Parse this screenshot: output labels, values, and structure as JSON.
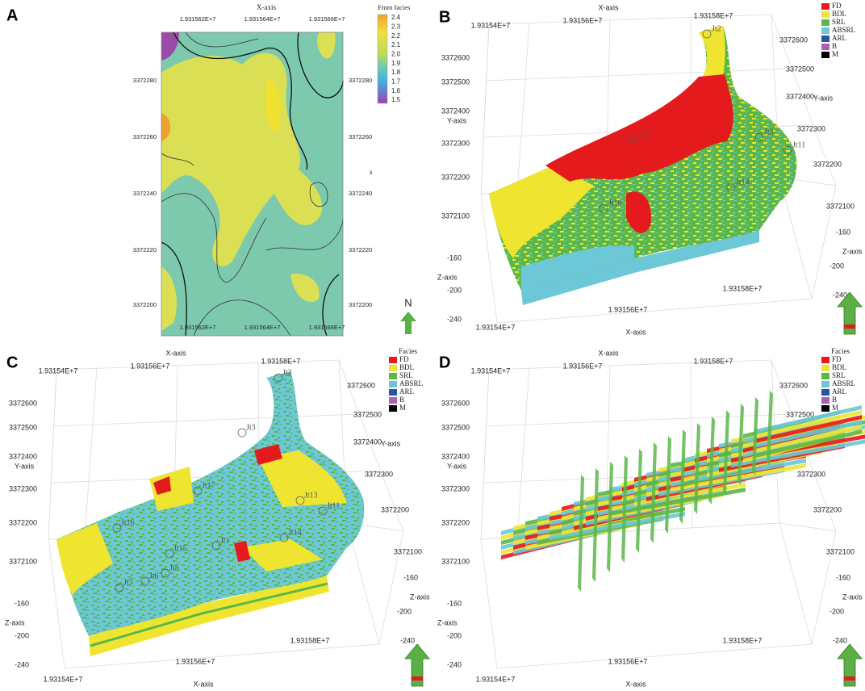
{
  "panels": [
    {
      "label": "A",
      "x_axis": "X-axis",
      "x_ticks_top": [
        "1.931562E+7",
        "1.931564E+7",
        "1.931566E+7"
      ],
      "x_ticks_bottom": [
        "1.931562E+7",
        "1.931564E+7",
        "1.931566E+7"
      ],
      "y_ticks_left": [
        "3372280",
        "3372260",
        "3372240",
        "3372220",
        "3372200"
      ],
      "y_ticks_right": [
        "3372280",
        "3372260",
        "3372240",
        "3372220",
        "3372200"
      ],
      "colorbar_title": "From facies",
      "colorbar_labels": [
        "2.4",
        "2.3",
        "2.2",
        "2.1",
        "2.0",
        "1.9",
        "1.8",
        "1.7",
        "1.6",
        "1.5"
      ],
      "side_note": "s",
      "north": "N"
    },
    {
      "label": "B",
      "legend": [
        "FD",
        "BDL",
        "SRL",
        "ABSRL",
        "ARL",
        "B",
        "M"
      ],
      "x_axis_top": "X-axis",
      "x_ticks_top": [
        "1.93154E+7",
        "1.93156E+7",
        "1.93158E+7"
      ],
      "y_axis_left": "Y-axis",
      "y_ticks_left": [
        "3372600",
        "3372500",
        "3372400",
        "3372300",
        "3372200",
        "3372100"
      ],
      "z_ticks_left": [
        "-160",
        "-200",
        "-240"
      ],
      "z_axis_left": "Z-axis",
      "y_ticks_right": [
        "3372600",
        "3372500",
        "3372400",
        "3372300",
        "3372200",
        "3372100"
      ],
      "y_axis_right": "Y-axis",
      "z_ticks_right": [
        "-160",
        "-200",
        "-240"
      ],
      "z_axis_right": "Z-axis",
      "x_ticks_bottom": [
        "1.93154E+7",
        "1.93156E+7",
        "1.93158E+7"
      ],
      "x_axis_bottom": "X-axis",
      "wells": [
        "Jt2",
        "Jt17",
        "Jt3",
        "Jt11",
        "Jt14",
        "Jt16"
      ]
    },
    {
      "label": "C",
      "legend_title": "Facies",
      "legend": [
        "FD",
        "BDL",
        "SRL",
        "ABSRL",
        "ARL",
        "B",
        "M"
      ],
      "x_axis_top": "X-axis",
      "x_ticks_top": [
        "1.93154E+7",
        "1.93156E+7",
        "1.93158E+7"
      ],
      "y_axis_left": "Y-axis",
      "y_ticks_left": [
        "3372600",
        "3372500",
        "3372400",
        "3372300",
        "3372200",
        "3372100"
      ],
      "z_ticks_left": [
        "-160",
        "-200",
        "-240"
      ],
      "z_axis_left": "Z-axis",
      "y_ticks_right": [
        "3372600",
        "3372500",
        "3372400",
        "3372300",
        "3372200",
        "3372100"
      ],
      "y_axis_right": "Y-axis",
      "z_ticks_right": [
        "-160",
        "-200",
        "-240"
      ],
      "z_axis_right": "Z-axis",
      "x_ticks_bottom": [
        "1.93154E+7",
        "1.93156E+7",
        "1.93158E+7"
      ],
      "x_axis_bottom": "X-axis",
      "wells": [
        "Jt2",
        "Jt3",
        "Jt17",
        "Jt13",
        "Jt11",
        "Jt16",
        "Jt15",
        "Jt1",
        "Jt14",
        "Jt5",
        "Jt6",
        "Jt7"
      ]
    },
    {
      "label": "D",
      "legend_title": "Facies",
      "legend": [
        "FD",
        "BDL",
        "SRL",
        "ABSRL",
        "ARL",
        "B",
        "M"
      ],
      "x_axis_top": "X-axis",
      "x_ticks_top": [
        "1.93154E+7",
        "1.93156E+7",
        "1.93158E+7"
      ],
      "y_axis_left": "Y-axis",
      "y_ticks_left": [
        "3372600",
        "3372500",
        "3372400",
        "3372300",
        "3372200",
        "3372100"
      ],
      "z_ticks_left": [
        "-160",
        "-200",
        "-240"
      ],
      "z_axis_left": "Z-axis",
      "y_ticks_right": [
        "3372600",
        "3372500",
        "3372400",
        "3372300",
        "3372200",
        "3372100"
      ],
      "y_axis_right": "Y-axis",
      "z_ticks_right": [
        "-160",
        "-200",
        "-240"
      ],
      "z_axis_right": "Z-axis",
      "x_ticks_bottom": [
        "1.93154E+7",
        "1.93156E+7",
        "1.93158E+7"
      ],
      "x_axis_bottom": "X-axis"
    }
  ]
}
